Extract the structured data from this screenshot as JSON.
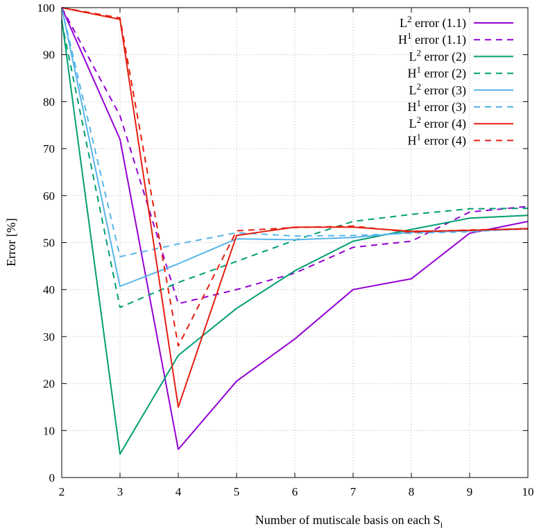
{
  "chart_data": {
    "type": "line",
    "title": "",
    "xlabel": "Number of mutiscale basis on each S",
    "xlabel_subscript": "i",
    "ylabel": "Error [%]",
    "xlim": [
      2,
      10
    ],
    "ylim": [
      0,
      100
    ],
    "x_ticks": [
      "2",
      "3",
      "4",
      "5",
      "6",
      "7",
      "8",
      "9",
      "10"
    ],
    "y_ticks": [
      "0",
      "10",
      "20",
      "30",
      "40",
      "50",
      "60",
      "70",
      "80",
      "90",
      "100"
    ],
    "grid": true,
    "legend_position": "top-right",
    "x": [
      2,
      3,
      4,
      5,
      6,
      7,
      8,
      9,
      10
    ],
    "series": [
      {
        "name": "L2 error (1.1)",
        "base": "L",
        "sup": "2",
        "suffix": " error (1.1)",
        "color": "#9400d3",
        "dash": "solid",
        "values": [
          100,
          72,
          6,
          20.5,
          29.5,
          40,
          42.3,
          52,
          54.5
        ]
      },
      {
        "name": "H1 error (1.1)",
        "base": "H",
        "sup": "1",
        "suffix": " error (1.1)",
        "color": "#9400d3",
        "dash": "dashed",
        "values": [
          100,
          77,
          37,
          40,
          43.5,
          49,
          50.3,
          56.5,
          57.7
        ]
      },
      {
        "name": "L2 error (2)",
        "base": "L",
        "sup": "2",
        "suffix": " error (2)",
        "color": "#009e73",
        "dash": "solid",
        "values": [
          97.5,
          5,
          26,
          36,
          44,
          50.3,
          52.8,
          55.2,
          55.8
        ]
      },
      {
        "name": "H1 error (2)",
        "base": "H",
        "sup": "1",
        "suffix": " error (2)",
        "color": "#009e73",
        "dash": "dashed",
        "values": [
          97,
          36.2,
          41.5,
          46,
          50.5,
          54.5,
          56,
          57.2,
          57.3
        ]
      },
      {
        "name": "L2 error (3)",
        "base": "L",
        "sup": "2",
        "suffix": " error (3)",
        "color": "#56b4e9",
        "dash": "solid",
        "values": [
          100,
          40.7,
          45.5,
          50.8,
          50.6,
          51.1,
          52.2,
          52.5,
          52.9
        ]
      },
      {
        "name": "H1 error (3)",
        "base": "H",
        "sup": "1",
        "suffix": " error (3)",
        "color": "#56b4e9",
        "dash": "dashed",
        "values": [
          100,
          47,
          49.7,
          52.1,
          51.4,
          51.5,
          52,
          52.3,
          53
        ]
      },
      {
        "name": "L2 error (4)",
        "base": "L",
        "sup": "2",
        "suffix": " error (4)",
        "color": "#e51e10",
        "dash": "solid",
        "values": [
          100,
          97.5,
          15,
          51.5,
          53.3,
          53.3,
          52.4,
          52.6,
          53
        ]
      },
      {
        "name": "H1 error (4)",
        "base": "H",
        "sup": "1",
        "suffix": " error (4)",
        "color": "#e51e10",
        "dash": "dashed",
        "values": [
          100,
          97.8,
          28,
          52.5,
          53.2,
          53.5,
          52.2,
          52.7,
          52.9
        ]
      }
    ]
  }
}
